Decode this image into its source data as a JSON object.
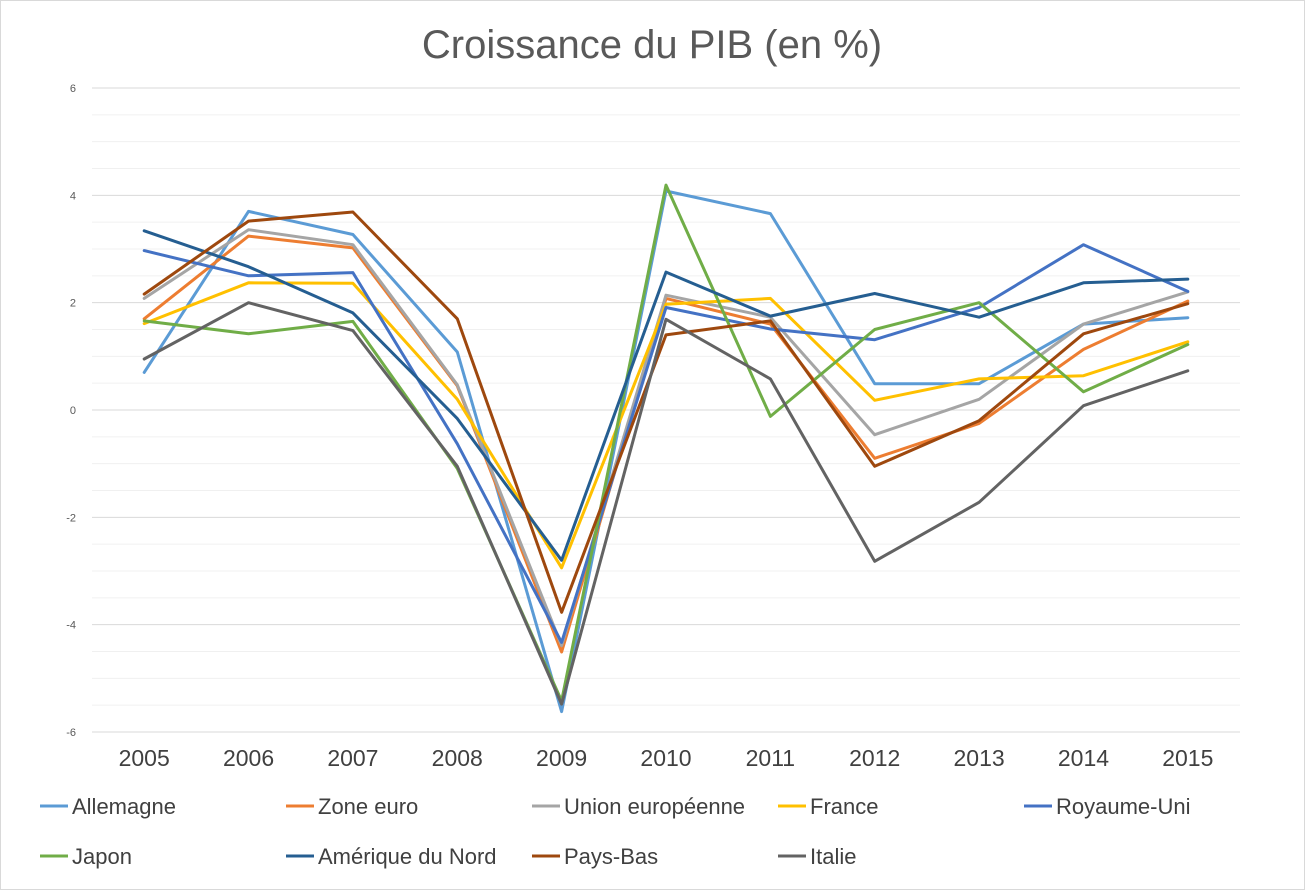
{
  "chart_data": {
    "type": "line",
    "title": "Croissance du PIB (en %)",
    "xlabel": "",
    "ylabel": "",
    "x": [
      "2005",
      "2006",
      "2007",
      "2008",
      "2009",
      "2010",
      "2011",
      "2012",
      "2013",
      "2014",
      "2015"
    ],
    "ylim": [
      -6,
      6
    ],
    "yticks": [
      "-6",
      "-4",
      "-2",
      "0",
      "2",
      "4",
      "6"
    ],
    "grid": true,
    "minor_grid": true,
    "legend_position": "bottom",
    "series": [
      {
        "name": "Allemagne",
        "color": "#5b9bd5",
        "values": [
          0.7,
          3.7,
          3.27,
          1.08,
          -5.62,
          4.08,
          3.66,
          0.49,
          0.49,
          1.6,
          1.72
        ]
      },
      {
        "name": "Zone euro",
        "color": "#ed7d31",
        "values": [
          1.7,
          3.24,
          3.02,
          0.45,
          -4.51,
          2.08,
          1.6,
          -0.9,
          -0.25,
          1.13,
          2.03
        ]
      },
      {
        "name": "Union européenne",
        "color": "#a5a5a5",
        "values": [
          2.08,
          3.36,
          3.08,
          0.47,
          -4.39,
          2.14,
          1.73,
          -0.46,
          0.2,
          1.6,
          2.2
        ]
      },
      {
        "name": "France",
        "color": "#ffc000",
        "values": [
          1.61,
          2.37,
          2.36,
          0.2,
          -2.94,
          1.97,
          2.08,
          0.18,
          0.58,
          0.64,
          1.27
        ]
      },
      {
        "name": "Royaume-Uni",
        "color": "#4472c4",
        "values": [
          2.97,
          2.5,
          2.56,
          -0.63,
          -4.33,
          1.91,
          1.51,
          1.31,
          1.91,
          3.08,
          2.21
        ]
      },
      {
        "name": "Japon",
        "color": "#70ad47",
        "values": [
          1.66,
          1.42,
          1.65,
          -1.09,
          -5.42,
          4.19,
          -0.12,
          1.5,
          2.0,
          0.34,
          1.22
        ]
      },
      {
        "name": "Amérique du Nord",
        "color": "#255e91",
        "values": [
          3.34,
          2.67,
          1.81,
          -0.16,
          -2.8,
          2.57,
          1.75,
          2.17,
          1.73,
          2.37,
          2.44
        ]
      },
      {
        "name": "Pays-Bas",
        "color": "#9e480e",
        "values": [
          2.16,
          3.52,
          3.69,
          1.7,
          -3.77,
          1.4,
          1.66,
          -1.05,
          -0.2,
          1.42,
          1.98
        ]
      },
      {
        "name": "Italie",
        "color": "#636363",
        "values": [
          0.95,
          2.0,
          1.48,
          -1.05,
          -5.48,
          1.69,
          0.58,
          -2.82,
          -1.72,
          0.08,
          0.73
        ]
      }
    ]
  }
}
